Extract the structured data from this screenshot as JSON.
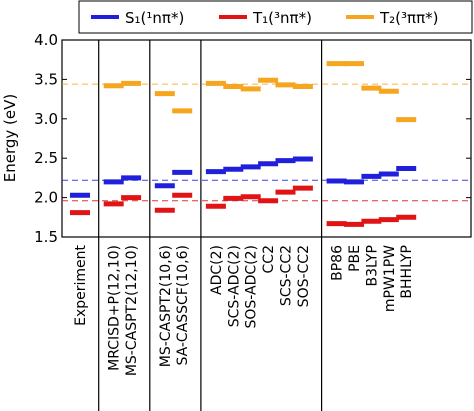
{
  "chart_data": {
    "type": "scatter",
    "ylabel": "Energy (eV)",
    "ylim": [
      1.5,
      4.0
    ],
    "yticks": [
      "1.5",
      "2.0",
      "2.5",
      "3.0",
      "3.5",
      "4.0"
    ],
    "legend": {
      "placement": "top",
      "entries": [
        {
          "id": "s1",
          "label": "S₁(¹nπ*)"
        },
        {
          "id": "t1",
          "label": "T₁(³nπ*)"
        },
        {
          "id": "t2",
          "label": "T₂(³ππ*)"
        }
      ]
    },
    "colors": {
      "s1": "#1f1fdc",
      "t1": "#e01414",
      "t2": "#f5a51e"
    },
    "reference_lines": {
      "s1": 2.22,
      "t1": 1.96,
      "t2": 3.44
    },
    "groups": [
      {
        "methods": [
          "Experiment"
        ]
      },
      {
        "methods": [
          "MRCISD+P(12,10)",
          "MS-CASPT2(12,10)"
        ]
      },
      {
        "methods": [
          "MS-CASPT2(10,6)",
          "SA-CASSCF(10,6)"
        ]
      },
      {
        "methods": [
          "ADC(2)",
          "SCS-ADC(2)",
          "SOS-ADC(2)",
          "CC2",
          "SCS-CC2",
          "SOS-CC2"
        ]
      },
      {
        "methods": [
          "BP86",
          "PBE",
          "B3LYP",
          "mPW1PW",
          "BHHLYP"
        ]
      }
    ],
    "series": [
      {
        "id": "s1",
        "values": [
          2.03,
          2.2,
          2.25,
          2.15,
          2.32,
          2.33,
          2.36,
          2.39,
          2.43,
          2.47,
          2.49,
          2.21,
          2.2,
          2.27,
          2.3,
          2.37
        ]
      },
      {
        "id": "t1",
        "values": [
          1.81,
          1.92,
          2.0,
          1.84,
          2.03,
          1.89,
          1.99,
          2.01,
          1.96,
          2.07,
          2.12,
          1.67,
          1.66,
          1.7,
          1.72,
          1.75
        ]
      },
      {
        "id": "t2",
        "values": [
          null,
          3.42,
          3.45,
          3.32,
          3.1,
          3.45,
          3.41,
          3.38,
          3.49,
          3.43,
          3.41,
          3.7,
          3.7,
          3.39,
          3.35,
          2.99
        ]
      }
    ]
  }
}
